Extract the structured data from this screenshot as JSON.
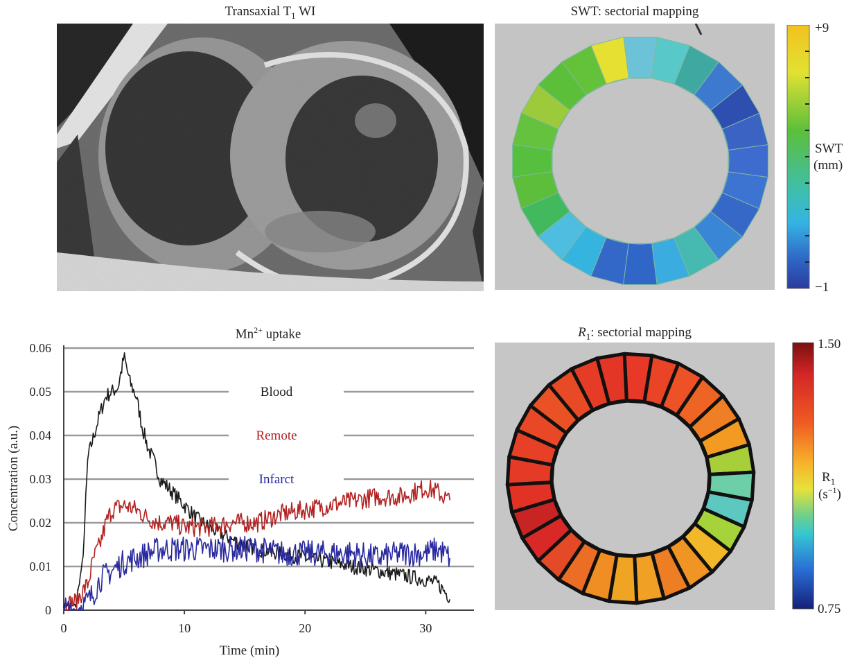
{
  "figure": {
    "panel_a": {
      "title_main": "Transaxial T",
      "title_sub": "1",
      "title_suffix": " WI"
    },
    "panel_b": {
      "title": "SWT: sectorial mapping",
      "colorbar": {
        "max_label": "+9",
        "min_label": "−1",
        "name": "SWT",
        "unit": "(mm)"
      }
    },
    "panel_c": {
      "title_main": "Mn",
      "title_sup": "2+",
      "title_suffix": " uptake"
    },
    "panel_d": {
      "title_main": "R",
      "title_sub": "1",
      "title_suffix": ": sectorial mapping",
      "colorbar": {
        "max_label": "1.50",
        "min_label": "0.75",
        "name_main": "R",
        "name_sub": "1",
        "unit_main": "(s",
        "unit_sup": "−1",
        "unit_close": ")"
      }
    }
  },
  "chart_data": {
    "type": "line",
    "title": "Mn2+ uptake",
    "xlabel": "Time (min)",
    "ylabel": "Concentration (a.u.)",
    "xlim": [
      0,
      34
    ],
    "ylim": [
      0,
      0.06
    ],
    "xticks": [
      "0",
      "10",
      "20",
      "30"
    ],
    "yticks": [
      "0",
      "0.01",
      "0.02",
      "0.03",
      "0.04",
      "0.05",
      "0.06"
    ],
    "grid": "horizontal",
    "legend_labels": [
      "Blood",
      "Remote",
      "Infarct"
    ],
    "series": [
      {
        "name": "Blood",
        "color": "#1a1a1a",
        "x": [
          0,
          1,
          1.6,
          2,
          2.5,
          3,
          3.5,
          4,
          4.5,
          5,
          5.5,
          6,
          6.5,
          7,
          7.5,
          8,
          9,
          10,
          11,
          12,
          14,
          16,
          18,
          20,
          22,
          24,
          26,
          28,
          30,
          31,
          32
        ],
        "y": [
          0.001,
          0.001,
          0.012,
          0.035,
          0.04,
          0.045,
          0.049,
          0.05,
          0.051,
          0.058,
          0.052,
          0.049,
          0.042,
          0.037,
          0.034,
          0.03,
          0.027,
          0.024,
          0.021,
          0.019,
          0.016,
          0.014,
          0.013,
          0.012,
          0.011,
          0.01,
          0.009,
          0.008,
          0.007,
          0.006,
          0.003
        ]
      },
      {
        "name": "Remote",
        "color": "#b22222",
        "x": [
          0,
          1,
          2,
          2.5,
          3,
          3.5,
          4,
          5,
          6,
          7,
          8,
          9,
          10,
          12,
          14,
          16,
          18,
          20,
          22,
          24,
          26,
          28,
          30,
          31,
          32
        ],
        "y": [
          0.001,
          0.002,
          0.006,
          0.012,
          0.015,
          0.02,
          0.023,
          0.024,
          0.023,
          0.021,
          0.02,
          0.02,
          0.019,
          0.019,
          0.02,
          0.02,
          0.022,
          0.023,
          0.024,
          0.025,
          0.026,
          0.026,
          0.028,
          0.027,
          0.025
        ]
      },
      {
        "name": "Infarct",
        "color": "#2a2aa0",
        "x": [
          0,
          1,
          2,
          2.5,
          3,
          4,
          5,
          6,
          7,
          8,
          9,
          10,
          12,
          14,
          16,
          18,
          20,
          22,
          24,
          26,
          28,
          30,
          31,
          32
        ],
        "y": [
          0.0,
          0.0,
          0.002,
          0.004,
          0.007,
          0.009,
          0.011,
          0.012,
          0.013,
          0.014,
          0.014,
          0.014,
          0.014,
          0.014,
          0.014,
          0.013,
          0.013,
          0.013,
          0.013,
          0.012,
          0.013,
          0.013,
          0.014,
          0.012
        ]
      }
    ]
  }
}
